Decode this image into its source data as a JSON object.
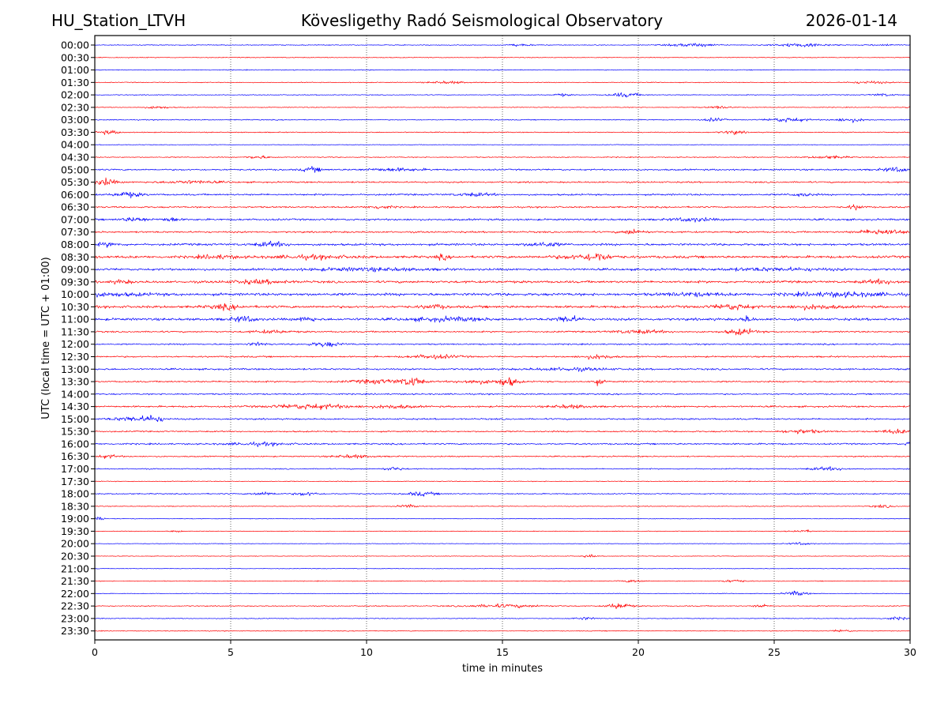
{
  "header": {
    "station": "HU_Station_LTVH",
    "observatory": "Kövesligethy Radó Seismological Observatory",
    "date": "2026-01-14"
  },
  "colors": {
    "even_trace": "#0000ff",
    "odd_trace": "#ff0000",
    "grid": "#000000"
  },
  "chart_data": {
    "type": "line",
    "title": "Kövesligethy Radó Seismological Observatory",
    "xlabel": "time in minutes",
    "ylabel": "UTC (local time = UTC + 01:00)",
    "xlim": [
      0,
      30
    ],
    "x_ticks": [
      "0",
      "5",
      "10",
      "15",
      "20",
      "25",
      "30"
    ],
    "x_tick_values": [
      0,
      5,
      10,
      15,
      20,
      25,
      30
    ],
    "grid": "vertical dotted lines at 5-minute intervals",
    "rows": [
      {
        "label": "00:00",
        "color": "blue",
        "base": 0.5,
        "events": [
          [
            15.7,
            0.6,
            1.2
          ],
          [
            22.0,
            1.2,
            2.0
          ],
          [
            26.0,
            1.5,
            2.0
          ],
          [
            29.0,
            0.6,
            1.2
          ]
        ]
      },
      {
        "label": "00:30",
        "color": "red",
        "base": 0.5,
        "events": []
      },
      {
        "label": "01:00",
        "color": "blue",
        "base": 0.5,
        "events": []
      },
      {
        "label": "01:30",
        "color": "red",
        "base": 0.5,
        "events": [
          [
            13.0,
            1.0,
            1.4
          ],
          [
            28.5,
            1.0,
            1.4
          ]
        ]
      },
      {
        "label": "02:00",
        "color": "blue",
        "base": 0.5,
        "events": [
          [
            17.2,
            0.4,
            1.5
          ],
          [
            19.5,
            0.8,
            2.5
          ],
          [
            29.0,
            0.6,
            1.5
          ]
        ]
      },
      {
        "label": "02:30",
        "color": "red",
        "base": 0.5,
        "events": [
          [
            2.3,
            0.6,
            1.5
          ],
          [
            23.0,
            0.6,
            1.5
          ],
          [
            30.0,
            0.2,
            2
          ]
        ]
      },
      {
        "label": "03:00",
        "color": "blue",
        "base": 0.6,
        "events": [
          [
            22.8,
            0.5,
            2.0
          ],
          [
            25.5,
            1.0,
            2.5
          ],
          [
            27.8,
            0.8,
            2.2
          ]
        ]
      },
      {
        "label": "03:30",
        "color": "red",
        "base": 0.6,
        "events": [
          [
            0.5,
            0.6,
            2.0
          ],
          [
            23.5,
            0.6,
            2.0
          ]
        ]
      },
      {
        "label": "04:00",
        "color": "blue",
        "base": 0.4,
        "events": []
      },
      {
        "label": "04:30",
        "color": "red",
        "base": 0.6,
        "events": [
          [
            6.0,
            0.6,
            1.8
          ],
          [
            27.0,
            1.0,
            1.6
          ]
        ]
      },
      {
        "label": "05:00",
        "color": "blue",
        "base": 1.0,
        "events": [
          [
            8.0,
            0.5,
            2.5
          ],
          [
            11.0,
            1.5,
            1.6
          ],
          [
            29.5,
            0.7,
            2.5
          ]
        ]
      },
      {
        "label": "05:30",
        "color": "red",
        "base": 1.0,
        "events": [
          [
            0.4,
            0.5,
            4.0
          ],
          [
            3.5,
            1.5,
            1.5
          ]
        ]
      },
      {
        "label": "06:00",
        "color": "blue",
        "base": 1.1,
        "events": [
          [
            1.2,
            0.7,
            2.8
          ],
          [
            14.0,
            1.0,
            1.6
          ],
          [
            26.0,
            0.6,
            1.8
          ]
        ]
      },
      {
        "label": "06:30",
        "color": "red",
        "base": 1.0,
        "events": [
          [
            10.5,
            0.6,
            2.0
          ],
          [
            28.0,
            0.4,
            2.5
          ]
        ]
      },
      {
        "label": "07:00",
        "color": "blue",
        "base": 1.2,
        "events": [
          [
            1.5,
            0.7,
            2.2
          ],
          [
            2.8,
            0.4,
            2.5
          ],
          [
            22.0,
            1.0,
            2.2
          ]
        ]
      },
      {
        "label": "07:30",
        "color": "red",
        "base": 1.1,
        "events": [
          [
            19.8,
            0.6,
            2.5
          ],
          [
            29.0,
            1.2,
            3.0
          ]
        ]
      },
      {
        "label": "08:00",
        "color": "blue",
        "base": 1.4,
        "events": [
          [
            0.5,
            0.5,
            2.0
          ],
          [
            6.5,
            0.8,
            2.4
          ],
          [
            16.5,
            0.8,
            2.4
          ]
        ]
      },
      {
        "label": "08:30",
        "color": "red",
        "base": 1.6,
        "events": [
          [
            4.5,
            1.0,
            1.8
          ],
          [
            8.0,
            2.0,
            1.6
          ],
          [
            18.0,
            1.5,
            2.0
          ],
          [
            18.5,
            0.5,
            3.5
          ],
          [
            12.8,
            0.3,
            2.5
          ]
        ]
      },
      {
        "label": "09:00",
        "color": "blue",
        "base": 1.4,
        "events": [
          [
            10.0,
            3.0,
            1.5
          ],
          [
            25.0,
            3.0,
            1.5
          ]
        ]
      },
      {
        "label": "09:30",
        "color": "red",
        "base": 1.5,
        "events": [
          [
            1.0,
            0.5,
            1.8
          ],
          [
            6.0,
            1.5,
            1.8
          ],
          [
            29.0,
            1.0,
            2.0
          ]
        ]
      },
      {
        "label": "10:00",
        "color": "blue",
        "base": 1.7,
        "events": [
          [
            0.0,
            3.0,
            1.4
          ],
          [
            22.0,
            1.5,
            1.6
          ],
          [
            27.5,
            2.5,
            2.0
          ]
        ]
      },
      {
        "label": "10:30",
        "color": "red",
        "base": 1.6,
        "events": [
          [
            4.8,
            0.8,
            2.3
          ],
          [
            12.5,
            0.6,
            2.0
          ],
          [
            23.5,
            1.0,
            2.8
          ],
          [
            26.5,
            1.2,
            2.2
          ]
        ]
      },
      {
        "label": "11:00",
        "color": "blue",
        "base": 1.6,
        "events": [
          [
            5.5,
            0.6,
            3.0
          ],
          [
            7.8,
            0.4,
            2.8
          ],
          [
            13.0,
            2.0,
            1.8
          ],
          [
            17.4,
            0.6,
            3.5
          ],
          [
            24.0,
            0.3,
            3.0
          ]
        ]
      },
      {
        "label": "11:30",
        "color": "red",
        "base": 1.0,
        "events": [
          [
            6.5,
            1.0,
            1.6
          ],
          [
            20.0,
            1.5,
            1.8
          ],
          [
            23.8,
            0.8,
            3.2
          ]
        ]
      },
      {
        "label": "12:00",
        "color": "blue",
        "base": 0.9,
        "events": [
          [
            6.0,
            0.5,
            1.8
          ],
          [
            8.5,
            0.8,
            2.6
          ]
        ]
      },
      {
        "label": "12:30",
        "color": "red",
        "base": 1.0,
        "events": [
          [
            12.5,
            1.2,
            2.2
          ],
          [
            18.5,
            0.8,
            2.4
          ]
        ]
      },
      {
        "label": "13:00",
        "color": "blue",
        "base": 1.1,
        "events": [
          [
            17.5,
            2.0,
            1.6
          ]
        ]
      },
      {
        "label": "13:30",
        "color": "red",
        "base": 1.0,
        "events": [
          [
            10.5,
            1.5,
            2.2
          ],
          [
            11.7,
            0.5,
            5.0
          ],
          [
            14.0,
            1.0,
            2.2
          ],
          [
            15.2,
            0.5,
            5.0
          ],
          [
            18.5,
            0.3,
            3.0
          ]
        ]
      },
      {
        "label": "14:00",
        "color": "blue",
        "base": 0.9,
        "events": []
      },
      {
        "label": "14:30",
        "color": "red",
        "base": 1.1,
        "events": [
          [
            8.0,
            2.0,
            2.6
          ],
          [
            11.0,
            1.0,
            2.0
          ],
          [
            17.5,
            1.0,
            1.8
          ]
        ]
      },
      {
        "label": "15:00",
        "color": "blue",
        "base": 1.0,
        "events": [
          [
            1.5,
            1.2,
            2.5
          ],
          [
            2.2,
            0.4,
            3.2
          ]
        ]
      },
      {
        "label": "15:30",
        "color": "red",
        "base": 0.9,
        "events": [
          [
            26.0,
            1.0,
            2.2
          ],
          [
            29.5,
            0.8,
            2.2
          ]
        ]
      },
      {
        "label": "16:00",
        "color": "blue",
        "base": 1.0,
        "events": [
          [
            6.0,
            1.5,
            1.6
          ],
          [
            30.0,
            0.2,
            3.0
          ]
        ]
      },
      {
        "label": "16:30",
        "color": "red",
        "base": 0.8,
        "events": [
          [
            0.5,
            0.6,
            1.8
          ],
          [
            9.5,
            1.0,
            1.8
          ]
        ]
      },
      {
        "label": "17:00",
        "color": "blue",
        "base": 0.7,
        "events": [
          [
            11.0,
            0.5,
            2.0
          ],
          [
            27.0,
            1.0,
            1.8
          ]
        ]
      },
      {
        "label": "17:30",
        "color": "red",
        "base": 0.5,
        "events": []
      },
      {
        "label": "18:00",
        "color": "blue",
        "base": 0.7,
        "events": [
          [
            6.2,
            0.6,
            2.0
          ],
          [
            7.8,
            0.6,
            2.2
          ],
          [
            12.0,
            0.8,
            2.2
          ]
        ]
      },
      {
        "label": "18:30",
        "color": "red",
        "base": 0.5,
        "events": [
          [
            11.5,
            0.5,
            1.8
          ],
          [
            29.0,
            0.6,
            1.5
          ]
        ]
      },
      {
        "label": "19:00",
        "color": "blue",
        "base": 0.4,
        "events": [
          [
            0.2,
            0.3,
            2.0
          ]
        ]
      },
      {
        "label": "19:30",
        "color": "red",
        "base": 0.4,
        "events": [
          [
            3.0,
            0.3,
            1.5
          ],
          [
            26.0,
            0.6,
            1.5
          ]
        ]
      },
      {
        "label": "20:00",
        "color": "blue",
        "base": 0.4,
        "events": [
          [
            26.0,
            0.6,
            1.5
          ]
        ]
      },
      {
        "label": "20:30",
        "color": "red",
        "base": 0.4,
        "events": [
          [
            18.2,
            0.3,
            1.8
          ]
        ]
      },
      {
        "label": "21:00",
        "color": "blue",
        "base": 0.4,
        "events": []
      },
      {
        "label": "21:30",
        "color": "red",
        "base": 0.5,
        "events": [
          [
            19.8,
            0.6,
            1.6
          ],
          [
            23.5,
            0.6,
            1.6
          ]
        ]
      },
      {
        "label": "22:00",
        "color": "blue",
        "base": 0.4,
        "events": [
          [
            25.8,
            0.6,
            2.6
          ]
        ]
      },
      {
        "label": "22:30",
        "color": "red",
        "base": 0.6,
        "events": [
          [
            15.0,
            2.0,
            1.8
          ],
          [
            19.3,
            0.6,
            3.5
          ],
          [
            24.5,
            0.3,
            2.2
          ]
        ]
      },
      {
        "label": "23:00",
        "color": "blue",
        "base": 0.5,
        "events": [
          [
            18.0,
            0.6,
            1.5
          ],
          [
            29.5,
            0.6,
            1.6
          ]
        ]
      },
      {
        "label": "23:30",
        "color": "red",
        "base": 0.5,
        "events": [
          [
            27.5,
            0.5,
            1.4
          ]
        ]
      }
    ]
  }
}
